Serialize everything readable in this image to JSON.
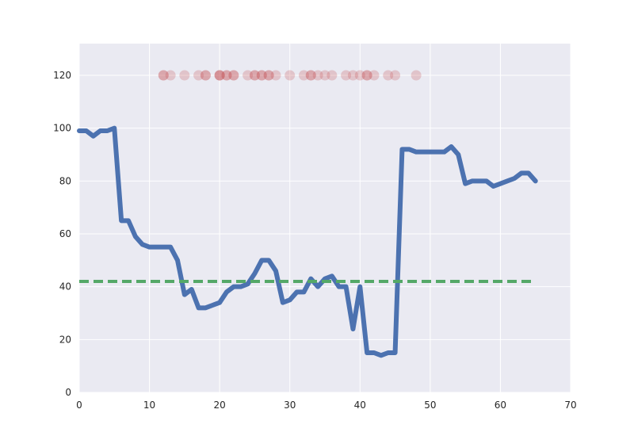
{
  "chart_data": {
    "type": "line",
    "title": "",
    "xlabel": "",
    "ylabel": "",
    "xlim": [
      0,
      70
    ],
    "ylim": [
      0,
      132
    ],
    "xticks": [
      0,
      10,
      20,
      30,
      40,
      50,
      60,
      70
    ],
    "yticks": [
      0,
      20,
      40,
      60,
      80,
      100,
      120
    ],
    "grid": true,
    "background": "#eaeaf2",
    "series": [
      {
        "type": "line",
        "color": "#4c72b0",
        "x": [
          0,
          1,
          2,
          3,
          4,
          5,
          6,
          7,
          8,
          9,
          10,
          11,
          12,
          13,
          14,
          15,
          16,
          17,
          18,
          19,
          20,
          21,
          22,
          23,
          24,
          25,
          26,
          27,
          28,
          29,
          30,
          31,
          32,
          33,
          34,
          35,
          36,
          37,
          38,
          39,
          40,
          41,
          42,
          43,
          44,
          45,
          46,
          47,
          48,
          49,
          50,
          51,
          52,
          53,
          54,
          55,
          56,
          57,
          58,
          59,
          60,
          61,
          62,
          63,
          64,
          65
        ],
        "values": [
          99,
          99,
          97,
          99,
          99,
          100,
          65,
          65,
          59,
          56,
          55,
          55,
          55,
          55,
          50,
          37,
          39,
          32,
          32,
          33,
          34,
          38,
          40,
          40,
          41,
          45,
          50,
          50,
          46,
          34,
          35,
          38,
          38,
          43,
          40,
          43,
          44,
          40,
          40,
          24,
          40,
          15,
          15,
          14,
          15,
          15,
          92,
          92,
          91,
          91,
          91,
          91,
          91,
          93,
          90,
          79,
          80,
          80,
          80,
          78,
          79,
          80,
          81,
          83,
          83,
          80
        ]
      },
      {
        "type": "hline",
        "color": "#55a868",
        "dashed": true,
        "y": 42,
        "x": [
          0,
          65
        ]
      },
      {
        "type": "scatter",
        "color": "#c44e52",
        "y": 120,
        "x": [
          12,
          12,
          13,
          15,
          17,
          18,
          18,
          20,
          20,
          20,
          21,
          21,
          22,
          22,
          24,
          25,
          25,
          26,
          26,
          27,
          27,
          28,
          30,
          32,
          33,
          33,
          34,
          35,
          36,
          38,
          39,
          40,
          41,
          41,
          42,
          44,
          45,
          48
        ]
      }
    ]
  }
}
